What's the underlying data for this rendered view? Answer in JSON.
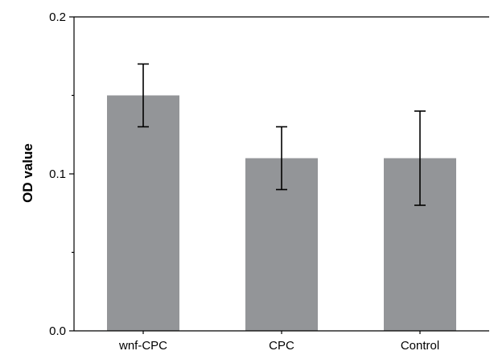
{
  "chart_data": {
    "type": "bar",
    "categories": [
      "wnf-CPC",
      "CPC",
      "Control"
    ],
    "values": [
      0.15,
      0.11,
      0.11
    ],
    "error_low": [
      0.13,
      0.09,
      0.08
    ],
    "error_high": [
      0.17,
      0.13,
      0.14
    ],
    "ylabel": "OD value",
    "xlabel": "",
    "ylim": [
      0,
      0.2
    ],
    "y_ticks": [
      0.0,
      0.1,
      0.2
    ],
    "y_tick_labels": [
      "0.0",
      "0.1",
      "0.2"
    ],
    "y_minor_ticks": [
      0.05,
      0.15
    ],
    "grid": false,
    "bar_color": "#939598",
    "axis_color": "#000000"
  }
}
